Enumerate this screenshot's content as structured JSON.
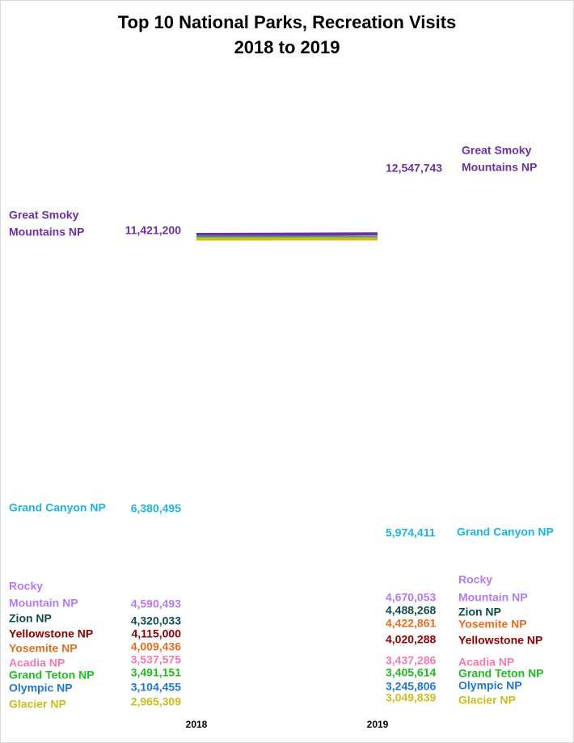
{
  "chart_data": {
    "type": "line",
    "title_lines": [
      "Top 10 National Parks, Recreation Visits",
      "2018 to 2019"
    ],
    "categories": [
      "2018",
      "2019"
    ],
    "xlabel": "",
    "ylabel": "",
    "grid": false,
    "legend": "none",
    "ylim": [
      2800000,
      13600000
    ],
    "series": [
      {
        "name": "Great Smoky Mountains NP",
        "label_2018": [
          "Great Smoky",
          "Mountains NP"
        ],
        "label_2019": [
          "Great Smoky",
          "Mountains NP"
        ],
        "values": [
          11421200,
          12547743
        ],
        "value_labels": [
          "11,421,200",
          "12,547,743"
        ],
        "color": "#7030A0"
      },
      {
        "name": "Grand Canyon NP",
        "label_2018": [
          "Grand Canyon NP"
        ],
        "label_2019": [
          "Grand Canyon NP"
        ],
        "values": [
          6380495,
          5974411
        ],
        "value_labels": [
          "6,380,495",
          "5,974,411"
        ],
        "color": "#1CB5E0"
      },
      {
        "name": "Rocky Mountain NP",
        "label_2018": [
          "Rocky",
          "Mountain NP"
        ],
        "label_2019": [
          "Rocky",
          "Mountain NP"
        ],
        "values": [
          4590493,
          4670053
        ],
        "value_labels": [
          "4,590,493",
          "4,670,053"
        ],
        "color": "#B57BEE"
      },
      {
        "name": "Zion NP",
        "label_2018": [
          "Zion NP"
        ],
        "label_2019": [
          "Zion NP"
        ],
        "values": [
          4320033,
          4488268
        ],
        "value_labels": [
          "4,320,033",
          "4,488,268"
        ],
        "color": "#0F4D4A"
      },
      {
        "name": "Yellowstone NP",
        "label_2018": [
          "Yellowstone NP"
        ],
        "label_2019": [
          "Yellowstone NP"
        ],
        "values": [
          4115000,
          4020288
        ],
        "value_labels": [
          "4,115,000",
          "4,020,288"
        ],
        "color": "#8B0000"
      },
      {
        "name": "Yosemite NP",
        "label_2018": [
          "Yosemite NP"
        ],
        "label_2019": [
          "Yosemite NP"
        ],
        "values": [
          4009436,
          4422861
        ],
        "value_labels": [
          "4,009,436",
          "4,422,861"
        ],
        "color": "#E07020"
      },
      {
        "name": "Acadia NP",
        "label_2018": [
          "Acadia NP"
        ],
        "label_2019": [
          "Acadia NP"
        ],
        "values": [
          3537575,
          3437286
        ],
        "value_labels": [
          "3,537,575",
          "3,437,286"
        ],
        "color": "#F07AB0"
      },
      {
        "name": "Grand Teton NP",
        "label_2018": [
          "Grand Teton NP"
        ],
        "label_2019": [
          "Grand Teton NP"
        ],
        "values": [
          3491151,
          3405614
        ],
        "value_labels": [
          "3,491,151",
          "3,405,614"
        ],
        "color": "#22BB22"
      },
      {
        "name": "Olympic NP",
        "label_2018": [
          "Olympic NP"
        ],
        "label_2019": [
          "Olympic NP"
        ],
        "values": [
          3104455,
          3245806
        ],
        "value_labels": [
          "3,104,455",
          "3,245,806"
        ],
        "color": "#1F77D4"
      },
      {
        "name": "Glacier NP",
        "label_2018": [
          "Glacier NP"
        ],
        "label_2019": [
          "Glacier NP"
        ],
        "values": [
          2965309,
          3049839
        ],
        "value_labels": [
          "2,965,309",
          "3,049,839"
        ],
        "color": "#C8BE1E"
      }
    ]
  }
}
